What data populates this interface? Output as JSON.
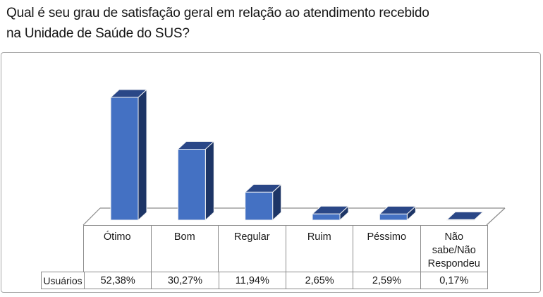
{
  "title": {
    "full": "Qual é seu grau de satisfação geral em relação ao atendimento recebido na Unidade de Saúde do SUS?",
    "lines": [
      "Qual é seu grau de satisfação geral em relação ao atendimento recebido",
      "na Unidade de Saúde do SUS?"
    ]
  },
  "chart_data": {
    "type": "bar",
    "style": "3d-column",
    "title": "Qual é seu grau de satisfação geral em relação ao atendimento recebido na Unidade de Saúde do SUS?",
    "categories": [
      "Ótimo",
      "Bom",
      "Regular",
      "Ruim",
      "Péssimo",
      "Não sabe/Não Respondeu"
    ],
    "series": [
      {
        "name": "Usuários",
        "values": [
          52.38,
          30.27,
          11.94,
          2.65,
          2.59,
          0.17
        ]
      }
    ],
    "value_labels": [
      "52,38%",
      "30,27%",
      "11,94%",
      "2,65%",
      "2,59%",
      "0,17%"
    ],
    "xlabel": "",
    "ylabel": "",
    "ylim": [
      0,
      60
    ],
    "grid": false,
    "legend_position": "none (values shown in data table below axis)",
    "colors": {
      "bar_front": "#4471c3",
      "bar_top": "#2a4787",
      "bar_side": "#1d3566",
      "edge_highlight": "#f5f5f5",
      "axis_line": "#8c8c8c",
      "chart_border": "#a6a6a6",
      "text": "#1a1a1a"
    }
  },
  "table": {
    "row_header": "Usuários"
  }
}
